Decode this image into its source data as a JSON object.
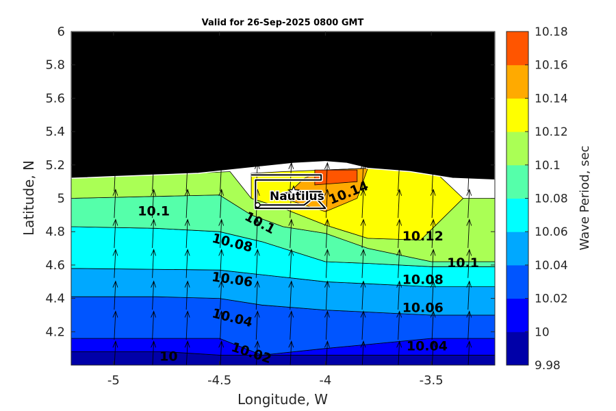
{
  "chart_data": {
    "type": "heatmap",
    "title": "Valid for 26-Sep-2025 0800 GMT",
    "xlabel": "Longitude, W",
    "ylabel": "Latitude, N",
    "xlim": [
      -5.2,
      -3.2
    ],
    "ylim": [
      4.0,
      6.0
    ],
    "x_ticks": [
      -5,
      -4.5,
      -4,
      -3.5
    ],
    "x_tick_labels": [
      "-5",
      "-4.5",
      "-4",
      "-3.5"
    ],
    "y_ticks": [
      4.2,
      4.4,
      4.6,
      4.8,
      5.0,
      5.2,
      5.4,
      5.6,
      5.8,
      6.0
    ],
    "y_tick_labels": [
      "4.2",
      "4.4",
      "4.6",
      "4.8",
      "5",
      "5.2",
      "5.4",
      "5.6",
      "5.8",
      "6"
    ],
    "colorbar": {
      "label": "Wave Period, sec",
      "levels": [
        9.98,
        10.0,
        10.02,
        10.04,
        10.06,
        10.08,
        10.1,
        10.12,
        10.14,
        10.16,
        10.18
      ],
      "tick_labels": [
        "9.98",
        "10",
        "10.02",
        "10.04",
        "10.06",
        "10.08",
        "10.1",
        "10.12",
        "10.14",
        "10.16",
        "10.18"
      ],
      "colors": [
        "#0000a8",
        "#0000ff",
        "#0055ff",
        "#00a8ff",
        "#00ffff",
        "#55ffaa",
        "#aaff55",
        "#ffff00",
        "#ffaa00",
        "#ff5500"
      ]
    },
    "contour_bands": [
      {
        "level_low": 9.98,
        "points": [
          [
            -5.2,
            4.0
          ],
          [
            -3.2,
            4.0
          ],
          [
            -3.2,
            4.06
          ],
          [
            -4.5,
            4.06
          ],
          [
            -4.75,
            4.08
          ],
          [
            -5.2,
            4.08
          ]
        ]
      },
      {
        "level_low": 10.0,
        "points": [
          [
            -5.2,
            4.08
          ],
          [
            -4.75,
            4.08
          ],
          [
            -4.5,
            4.06
          ],
          [
            -3.2,
            4.06
          ],
          [
            -3.2,
            4.16
          ],
          [
            -3.5,
            4.16
          ],
          [
            -4.0,
            4.1
          ],
          [
            -4.3,
            4.06
          ],
          [
            -4.5,
            4.16
          ],
          [
            -4.75,
            4.16
          ],
          [
            -5.2,
            4.16
          ]
        ]
      },
      {
        "level_low": 10.02,
        "points": [
          [
            -5.2,
            4.16
          ],
          [
            -4.75,
            4.16
          ],
          [
            -4.5,
            4.16
          ],
          [
            -4.3,
            4.06
          ],
          [
            -4.0,
            4.1
          ],
          [
            -3.5,
            4.16
          ],
          [
            -3.2,
            4.16
          ],
          [
            -3.2,
            4.3
          ],
          [
            -3.5,
            4.3
          ],
          [
            -4.0,
            4.33
          ],
          [
            -4.3,
            4.36
          ],
          [
            -4.5,
            4.4
          ],
          [
            -4.8,
            4.41
          ],
          [
            -5.2,
            4.41
          ]
        ]
      },
      {
        "level_low": 10.04,
        "points": [
          [
            -5.2,
            4.41
          ],
          [
            -4.8,
            4.41
          ],
          [
            -4.5,
            4.4
          ],
          [
            -4.3,
            4.36
          ],
          [
            -4.0,
            4.33
          ],
          [
            -3.5,
            4.3
          ],
          [
            -3.2,
            4.3
          ],
          [
            -3.2,
            4.47
          ],
          [
            -3.5,
            4.47
          ],
          [
            -4.0,
            4.5
          ],
          [
            -4.5,
            4.57
          ],
          [
            -5.2,
            4.58
          ]
        ]
      },
      {
        "level_low": 10.06,
        "points": [
          [
            -5.2,
            4.58
          ],
          [
            -4.5,
            4.57
          ],
          [
            -4.0,
            4.5
          ],
          [
            -3.5,
            4.47
          ],
          [
            -3.2,
            4.47
          ],
          [
            -3.2,
            4.59
          ],
          [
            -3.5,
            4.59
          ],
          [
            -3.8,
            4.61
          ],
          [
            -4.0,
            4.62
          ],
          [
            -4.3,
            4.74
          ],
          [
            -4.5,
            4.8
          ],
          [
            -4.8,
            4.82
          ],
          [
            -5.2,
            4.83
          ]
        ]
      },
      {
        "level_low": 10.08,
        "points": [
          [
            -5.2,
            4.83
          ],
          [
            -4.8,
            4.82
          ],
          [
            -4.5,
            4.8
          ],
          [
            -4.3,
            4.74
          ],
          [
            -4.0,
            4.62
          ],
          [
            -3.8,
            4.61
          ],
          [
            -3.5,
            4.59
          ],
          [
            -3.2,
            4.59
          ],
          [
            -3.2,
            4.62
          ],
          [
            -3.5,
            4.62
          ],
          [
            -3.8,
            4.7
          ],
          [
            -4.0,
            4.79
          ],
          [
            -4.2,
            4.83
          ],
          [
            -4.35,
            4.9
          ],
          [
            -4.5,
            5.02
          ],
          [
            -5.2,
            5.0
          ]
        ]
      },
      {
        "level_low": 10.1,
        "points": [
          [
            -5.2,
            5.0
          ],
          [
            -4.5,
            5.02
          ],
          [
            -4.35,
            4.9
          ],
          [
            -4.2,
            4.83
          ],
          [
            -4.0,
            4.79
          ],
          [
            -3.8,
            4.7
          ],
          [
            -3.5,
            4.62
          ],
          [
            -3.2,
            4.62
          ],
          [
            -3.2,
            5.0
          ],
          [
            -3.35,
            5.0
          ],
          [
            -3.55,
            4.75
          ],
          [
            -3.8,
            4.76
          ],
          [
            -4.0,
            4.84
          ],
          [
            -4.2,
            4.94
          ],
          [
            -4.35,
            5.0
          ],
          [
            -4.45,
            5.16
          ],
          [
            -4.8,
            5.14
          ],
          [
            -5.2,
            5.12
          ]
        ]
      },
      {
        "level_low": 10.12,
        "points": [
          [
            -4.35,
            5.0
          ],
          [
            -4.2,
            4.94
          ],
          [
            -4.0,
            4.84
          ],
          [
            -3.8,
            4.76
          ],
          [
            -3.55,
            4.75
          ],
          [
            -3.35,
            5.0
          ],
          [
            -3.5,
            5.18
          ],
          [
            -3.8,
            5.18
          ],
          [
            -4.2,
            5.16
          ],
          [
            -4.35,
            5.15
          ]
        ]
      },
      {
        "level_low": 10.14,
        "points": [
          [
            -4.2,
            5.0
          ],
          [
            -4.0,
            4.92
          ],
          [
            -3.85,
            5.0
          ],
          [
            -3.8,
            5.18
          ],
          [
            -4.0,
            5.17
          ],
          [
            -4.1,
            5.12
          ]
        ]
      },
      {
        "level_low": 10.16,
        "points": [
          [
            -4.05,
            5.17
          ],
          [
            -4.05,
            5.08
          ],
          [
            -3.85,
            5.1
          ],
          [
            -3.85,
            5.17
          ]
        ]
      }
    ],
    "contour_labels": [
      {
        "text": "10.1",
        "x": -4.81,
        "y": 4.92,
        "angle": 0
      },
      {
        "text": "10.1",
        "x": -4.31,
        "y": 4.85,
        "angle": 28
      },
      {
        "text": "10.14",
        "x": -3.89,
        "y": 5.03,
        "angle": -22
      },
      {
        "text": "10.12",
        "x": -3.54,
        "y": 4.77,
        "angle": 0
      },
      {
        "text": "10.08",
        "x": -4.44,
        "y": 4.73,
        "angle": 14
      },
      {
        "text": "10.1",
        "x": -3.35,
        "y": 4.61,
        "angle": 0
      },
      {
        "text": "10.06",
        "x": -4.44,
        "y": 4.51,
        "angle": 8
      },
      {
        "text": "10.08",
        "x": -3.54,
        "y": 4.51,
        "angle": 0
      },
      {
        "text": "10.04",
        "x": -4.44,
        "y": 4.28,
        "angle": 14
      },
      {
        "text": "10.06",
        "x": -3.54,
        "y": 4.34,
        "angle": 0
      },
      {
        "text": "10.02",
        "x": -4.35,
        "y": 4.07,
        "angle": 18
      },
      {
        "text": "10",
        "x": -4.74,
        "y": 4.05,
        "angle": 0
      },
      {
        "text": "10.04",
        "x": -3.52,
        "y": 4.11,
        "angle": 0
      }
    ],
    "arrow_columns": [
      -5.0,
      -4.82,
      -4.66,
      -4.5,
      -4.33,
      -4.17,
      -4.0,
      -3.83,
      -3.66,
      -3.5,
      -3.33
    ],
    "arrow_rows": [
      4.03,
      4.21,
      4.39,
      4.58,
      4.76,
      4.94,
      5.1
    ],
    "track": {
      "name": "Nautilus",
      "points": [
        [
          -4.35,
          5.14
        ],
        [
          -4.02,
          5.14
        ],
        [
          -4.02,
          5.11
        ],
        [
          -4.33,
          5.11
        ],
        [
          -4.33,
          4.94
        ],
        [
          -4.2,
          4.94
        ],
        [
          -4.0,
          4.94
        ],
        [
          -4.05,
          5.01
        ],
        [
          -4.2,
          5.03
        ],
        [
          -4.12,
          5.04
        ],
        [
          -4.02,
          5.04
        ],
        [
          -4.1,
          4.96
        ],
        [
          -4.32,
          4.96
        ]
      ]
    },
    "vessel_marker": {
      "x": -4.15,
      "y": 5.04
    },
    "grid": false,
    "legend": "none"
  }
}
